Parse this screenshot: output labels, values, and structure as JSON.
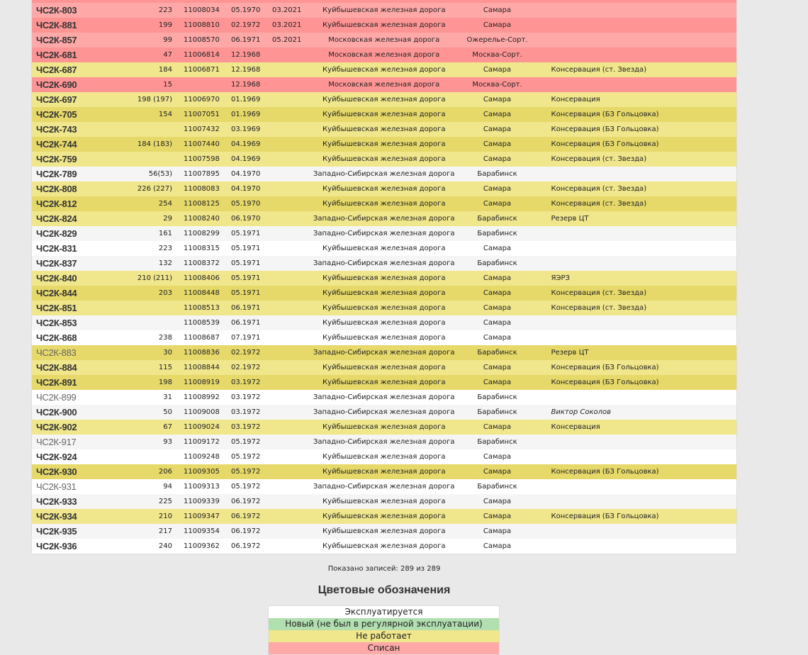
{
  "colors": {
    "written_off": "#ffa8a8",
    "not_working": "#f0e68c",
    "in_service": "#ffffff",
    "new": "#b2dfb0"
  },
  "rows": [
    {
      "name": "",
      "num": "",
      "serial": "",
      "built": "",
      "retired": "",
      "railway": "",
      "depot": "",
      "note": "",
      "status": "r",
      "dim": false
    },
    {
      "name": "ЧС2К-803",
      "num": "223",
      "serial": "11008034",
      "built": "05.1970",
      "retired": "03.2021",
      "railway": "Куйбышевская железная дорога",
      "depot": "Самара",
      "note": "",
      "status": "r"
    },
    {
      "name": "ЧС2К-881",
      "num": "199",
      "serial": "11008810",
      "built": "02.1972",
      "retired": "03.2021",
      "railway": "Куйбышевская железная дорога",
      "depot": "Самара",
      "note": "",
      "status": "r"
    },
    {
      "name": "ЧС2К-857",
      "num": "99",
      "serial": "11008570",
      "built": "06.1971",
      "retired": "05.2021",
      "railway": "Московская железная дорога",
      "depot": "Ожерелье-Сорт.",
      "note": "",
      "status": "r"
    },
    {
      "name": "ЧС2К-681",
      "num": "47",
      "serial": "11006814",
      "built": "12.1968",
      "retired": "",
      "railway": "Московская железная дорога",
      "depot": "Москва-Сорт.",
      "note": "",
      "status": "r"
    },
    {
      "name": "ЧС2К-687",
      "num": "184",
      "serial": "11006871",
      "built": "12.1968",
      "retired": "",
      "railway": "Куйбышевская железная дорога",
      "depot": "Самара",
      "note": "Консервация (ст. Звезда)",
      "status": "y"
    },
    {
      "name": "ЧС2К-690",
      "num": "15",
      "serial": "",
      "built": "12.1968",
      "retired": "",
      "railway": "Московская железная дорога",
      "depot": "Москва-Сорт.",
      "note": "",
      "status": "r"
    },
    {
      "name": "ЧС2К-697",
      "num": "198 (197)",
      "serial": "11006970",
      "built": "01.1969",
      "retired": "",
      "railway": "Куйбышевская железная дорога",
      "depot": "Самара",
      "note": "Консервация",
      "status": "y"
    },
    {
      "name": "ЧС2К-705",
      "num": "154",
      "serial": "11007051",
      "built": "01.1969",
      "retired": "",
      "railway": "Куйбышевская железная дорога",
      "depot": "Самара",
      "note": "Консервация (БЗ Гольцовка)",
      "status": "y"
    },
    {
      "name": "ЧС2К-743",
      "num": "",
      "serial": "11007432",
      "built": "03.1969",
      "retired": "",
      "railway": "Куйбышевская железная дорога",
      "depot": "Самара",
      "note": "Консервация (БЗ Гольцовка)",
      "status": "y"
    },
    {
      "name": "ЧС2К-744",
      "num": "184 (183)",
      "serial": "11007440",
      "built": "04.1969",
      "retired": "",
      "railway": "Куйбышевская железная дорога",
      "depot": "Самара",
      "note": "Консервация (БЗ Гольцовка)",
      "status": "y"
    },
    {
      "name": "ЧС2К-759",
      "num": "",
      "serial": "11007598",
      "built": "04.1969",
      "retired": "",
      "railway": "Куйбышевская железная дорога",
      "depot": "Самара",
      "note": "Консервация (ст. Звезда)",
      "status": "y"
    },
    {
      "name": "ЧС2К-789",
      "num": "56(53)",
      "serial": "11007895",
      "built": "04.1970",
      "retired": "",
      "railway": "Западно-Сибирская железная дорога",
      "depot": "Барабинск",
      "note": "",
      "status": "w"
    },
    {
      "name": "ЧС2К-808",
      "num": "226 (227)",
      "serial": "11008083",
      "built": "04.1970",
      "retired": "",
      "railway": "Куйбышевская железная дорога",
      "depot": "Самара",
      "note": "Консервация (ст. Звезда)",
      "status": "y"
    },
    {
      "name": "ЧС2К-812",
      "num": "254",
      "serial": "11008125",
      "built": "05.1970",
      "retired": "",
      "railway": "Куйбышевская железная дорога",
      "depot": "Самара",
      "note": "Консервация (ст. Звезда)",
      "status": "y"
    },
    {
      "name": "ЧС2К-824",
      "num": "29",
      "serial": "11008240",
      "built": "06.1970",
      "retired": "",
      "railway": "Западно-Сибирская железная дорога",
      "depot": "Барабинск",
      "note": "Резерв ЦТ",
      "status": "y"
    },
    {
      "name": "ЧС2К-829",
      "num": "161",
      "serial": "11008299",
      "built": "05.1971",
      "retired": "",
      "railway": "Западно-Сибирская железная дорога",
      "depot": "Барабинск",
      "note": "",
      "status": "w"
    },
    {
      "name": "ЧС2К-831",
      "num": "223",
      "serial": "11008315",
      "built": "05.1971",
      "retired": "",
      "railway": "Куйбышевская железная дорога",
      "depot": "Самара",
      "note": "",
      "status": "w"
    },
    {
      "name": "ЧС2К-837",
      "num": "132",
      "serial": "11008372",
      "built": "05.1971",
      "retired": "",
      "railway": "Западно-Сибирская железная дорога",
      "depot": "Барабинск",
      "note": "",
      "status": "w"
    },
    {
      "name": "ЧС2К-840",
      "num": "210 (211)",
      "serial": "11008406",
      "built": "05.1971",
      "retired": "",
      "railway": "Куйбышевская железная дорога",
      "depot": "Самара",
      "note": "ЯЭРЗ",
      "status": "y"
    },
    {
      "name": "ЧС2К-844",
      "num": "203",
      "serial": "11008448",
      "built": "05.1971",
      "retired": "",
      "railway": "Куйбышевская железная дорога",
      "depot": "Самара",
      "note": "Консервация (ст. Звезда)",
      "status": "y"
    },
    {
      "name": "ЧС2К-851",
      "num": "",
      "serial": "11008513",
      "built": "06.1971",
      "retired": "",
      "railway": "Куйбышевская железная дорога",
      "depot": "Самара",
      "note": "Консервация (ст. Звезда)",
      "status": "y"
    },
    {
      "name": "ЧС2К-853",
      "num": "",
      "serial": "11008539",
      "built": "06.1971",
      "retired": "",
      "railway": "Куйбышевская железная дорога",
      "depot": "Самара",
      "note": "",
      "status": "w"
    },
    {
      "name": "ЧС2К-868",
      "num": "238",
      "serial": "11008687",
      "built": "07.1971",
      "retired": "",
      "railway": "Куйбышевская железная дорога",
      "depot": "Самара",
      "note": "",
      "status": "w"
    },
    {
      "name": "ЧС2К-883",
      "num": "30",
      "serial": "11008836",
      "built": "02.1972",
      "retired": "",
      "railway": "Западно-Сибирская железная дорога",
      "depot": "Барабинск",
      "note": "Резерв ЦТ",
      "status": "y",
      "dim": true
    },
    {
      "name": "ЧС2К-884",
      "num": "115",
      "serial": "11008844",
      "built": "02.1972",
      "retired": "",
      "railway": "Куйбышевская железная дорога",
      "depot": "Самара",
      "note": "Консервация (БЗ Гольцовка)",
      "status": "y"
    },
    {
      "name": "ЧС2К-891",
      "num": "198",
      "serial": "11008919",
      "built": "03.1972",
      "retired": "",
      "railway": "Куйбышевская железная дорога",
      "depot": "Самара",
      "note": "Консервация (БЗ Гольцовка)",
      "status": "y"
    },
    {
      "name": "ЧС2К-899",
      "num": "31",
      "serial": "11008992",
      "built": "03.1972",
      "retired": "",
      "railway": "Западно-Сибирская железная дорога",
      "depot": "Барабинск",
      "note": "",
      "status": "w",
      "dim": true
    },
    {
      "name": "ЧС2К-900",
      "num": "50",
      "serial": "11009008",
      "built": "03.1972",
      "retired": "",
      "railway": "Западно-Сибирская железная дорога",
      "depot": "Барабинск",
      "note": "Виктор Соколов",
      "status": "w",
      "italic": true
    },
    {
      "name": "ЧС2К-902",
      "num": "67",
      "serial": "11009024",
      "built": "03.1972",
      "retired": "",
      "railway": "Куйбышевская железная дорога",
      "depot": "Самара",
      "note": "Консервация",
      "status": "y"
    },
    {
      "name": "ЧС2К-917",
      "num": "93",
      "serial": "11009172",
      "built": "05.1972",
      "retired": "",
      "railway": "Западно-Сибирская железная дорога",
      "depot": "Барабинск",
      "note": "",
      "status": "w",
      "dim": true
    },
    {
      "name": "ЧС2К-924",
      "num": "",
      "serial": "11009248",
      "built": "05.1972",
      "retired": "",
      "railway": "Куйбышевская железная дорога",
      "depot": "Самара",
      "note": "",
      "status": "w"
    },
    {
      "name": "ЧС2К-930",
      "num": "206",
      "serial": "11009305",
      "built": "05.1972",
      "retired": "",
      "railway": "Куйбышевская железная дорога",
      "depot": "Самара",
      "note": "Консервация (БЗ Гольцовка)",
      "status": "y"
    },
    {
      "name": "ЧС2К-931",
      "num": "94",
      "serial": "11009313",
      "built": "05.1972",
      "retired": "",
      "railway": "Западно-Сибирская железная дорога",
      "depot": "Барабинск",
      "note": "",
      "status": "w",
      "dim": true
    },
    {
      "name": "ЧС2К-933",
      "num": "225",
      "serial": "11009339",
      "built": "06.1972",
      "retired": "",
      "railway": "Куйбышевская железная дорога",
      "depot": "Самара",
      "note": "",
      "status": "w"
    },
    {
      "name": "ЧС2К-934",
      "num": "210",
      "serial": "11009347",
      "built": "06.1972",
      "retired": "",
      "railway": "Куйбышевская железная дорога",
      "depot": "Самара",
      "note": "Консервация (БЗ Гольцовка)",
      "status": "y"
    },
    {
      "name": "ЧС2К-935",
      "num": "217",
      "serial": "11009354",
      "built": "06.1972",
      "retired": "",
      "railway": "Куйбышевская железная дорога",
      "depot": "Самара",
      "note": "",
      "status": "w"
    },
    {
      "name": "ЧС2К-936",
      "num": "240",
      "serial": "11009362",
      "built": "06.1972",
      "retired": "",
      "railway": "Куйбышевская железная дорога",
      "depot": "Самара",
      "note": "",
      "status": "w"
    }
  ],
  "footer": {
    "shown": "Показано записей: 289 из 289"
  },
  "legend": {
    "title": "Цветовые обозначения",
    "items": [
      "Эксплуатируется",
      "Новый (не был в регулярной эксплуатации)",
      "Не работает",
      "Списан"
    ]
  }
}
